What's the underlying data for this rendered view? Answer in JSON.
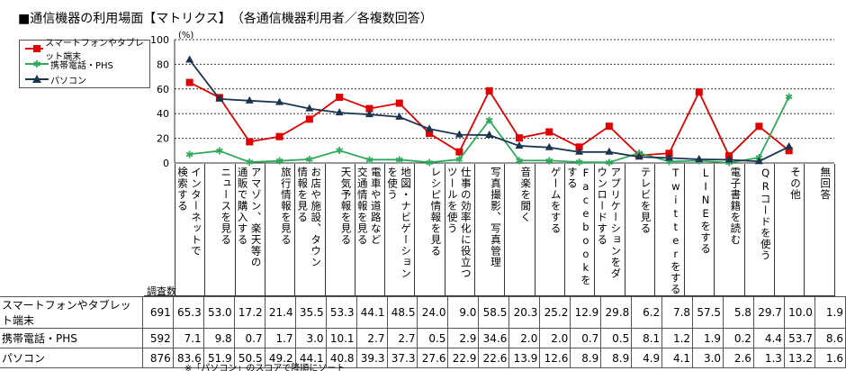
{
  "title": "■通信機器の利用場面【マトリクス】　（各通信機器利用者／各複数回答）",
  "unit": "(%)",
  "count_label": "調査数",
  "note": "※「パソコン」のスコアで降順にソート",
  "colors": {
    "smartphone": "#e00000",
    "mobile": "#2eaa5c",
    "pc": "#1b3550"
  },
  "chart_data": {
    "type": "line",
    "ylim": [
      0,
      100
    ],
    "yticks": [
      0,
      20,
      40,
      60,
      80,
      100
    ],
    "grid": true,
    "legend_position": "top-left",
    "categories": [
      "インターネットで\n検索する",
      "ニュースを見る",
      "アマゾン、楽天等の\n通販で購入する",
      "旅行情報を見る",
      "お店や施設、タウン\n情報を見る",
      "天気予報を見る",
      "電車や道路など\n交通情報を見る",
      "地図・ナビゲーション\nを使う",
      "レシピ情報を見る",
      "仕事の効率化に役立つ\nツールを使う",
      "写真撮影、写真管理",
      "音楽を聞く",
      "ゲームをする",
      "Facebookを\nする",
      "アプリケーションをダ\nウンロードする",
      "テレビを見る",
      "Twitterをする",
      "LINEをする",
      "電子書籍を読む",
      "QRコードを使う",
      "その他",
      "無回答"
    ],
    "series": [
      {
        "name": "スマートフォンやタブレット端末",
        "n": "691",
        "marker": "square",
        "values": [
          65.3,
          53.0,
          17.2,
          21.4,
          35.5,
          53.3,
          44.1,
          48.5,
          24.0,
          9.0,
          58.5,
          20.3,
          25.2,
          12.9,
          29.8,
          6.2,
          7.8,
          57.5,
          5.8,
          29.7,
          10.0,
          1.9
        ]
      },
      {
        "name": "携帯電話・PHS",
        "n": "592",
        "marker": "star",
        "values": [
          7.1,
          9.8,
          0.7,
          1.7,
          3.0,
          10.1,
          2.7,
          2.7,
          0.5,
          2.9,
          34.6,
          2.0,
          2.0,
          0.7,
          0.5,
          8.1,
          1.2,
          1.9,
          0.2,
          4.4,
          53.7,
          8.6
        ]
      },
      {
        "name": "パソコン",
        "n": "876",
        "marker": "triangle",
        "values": [
          83.6,
          51.9,
          50.5,
          49.2,
          44.1,
          40.8,
          39.3,
          37.3,
          27.6,
          22.9,
          22.6,
          13.9,
          12.6,
          8.9,
          8.9,
          4.9,
          4.1,
          3.0,
          2.6,
          1.3,
          13.2,
          1.6
        ]
      }
    ],
    "plotted_note": "無回答 not plotted"
  }
}
